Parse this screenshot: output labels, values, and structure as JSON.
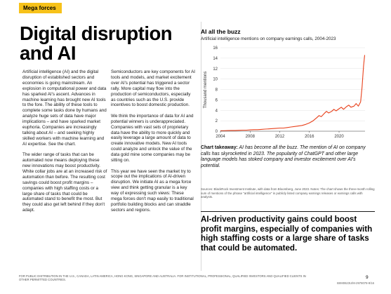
{
  "section_tag": "Mega forces",
  "headline": "Digital disruption and AI",
  "column1": [
    "Artificial intelligence (AI) and the digital disruption of established sectors and economies is going mainstream. An explosion in computational power and data has sparked AI's ascent. Advances in machine learning has brought new AI tools to the fore. The ability of these tools to complete some tasks done by humans and analyze huge sets of data have major implications – and have sparked market euphoria. Companies are increasingly talking about AI – and seeking highly skilled workers with machine learning and AI expertise. See the chart.",
    "The wider range of tasks that can be automated now means deploying these new innovations may boost productivity. White collar jobs are at an increased risk of automation than before. The resulting cost savings could boost profit margins – companies with high staffing costs or a large share of tasks that could be automated stand to benefit the most. But they could also get left behind if they don't adapt."
  ],
  "column2": [
    "Semiconductors are key components for AI tools and models, and market excitement over AI's potential has triggered a sector rally. More capital may flow into the production of semiconductors, especially as countries such as the U.S. provide incentives to boost domestic production.",
    "We think the importance of data for AI and potential winners is underappreciated. Companies with vast sets of proprietary data have the ability to more quickly and easily leverage a large amount of data to create innovative models. New AI tools could analyze and unlock the value of the data gold mine some companies may be sitting on.",
    "This year we have seen the market try to scope out the implications of AI-driven disruption. We initiate AI as a mega force view and think getting granular is a key way of expressing such views: These mega forces don't map easily to traditional portfolio building blocks and can straddle sectors and regions."
  ],
  "chart_title": "AI all the buzz",
  "chart_subtitle": "Artificial intelligence mentions on company earnings calls, 2004-2023",
  "chart_data": {
    "type": "line",
    "title": "AI all the buzz",
    "subtitle": "Artificial intelligence mentions on company earnings calls, 2004-2023",
    "xlabel": "",
    "ylabel": "Thousand mentions",
    "xlim": [
      2004,
      2023.5
    ],
    "ylim": [
      0,
      16
    ],
    "x_ticks": [
      "2004",
      "2008",
      "2012",
      "2016",
      "2020"
    ],
    "y_ticks": [
      "0",
      "2",
      "4",
      "6",
      "8",
      "10",
      "12",
      "14",
      "16"
    ],
    "grid": true,
    "color": "#e8411c",
    "points": [
      [
        2004.0,
        0.1
      ],
      [
        2004.5,
        0.1
      ],
      [
        2005.0,
        0.12
      ],
      [
        2005.5,
        0.15
      ],
      [
        2006.0,
        0.15
      ],
      [
        2006.5,
        0.18
      ],
      [
        2007.0,
        0.2
      ],
      [
        2007.5,
        0.2
      ],
      [
        2008.0,
        0.25
      ],
      [
        2008.5,
        0.3
      ],
      [
        2009.0,
        0.3
      ],
      [
        2009.5,
        0.35
      ],
      [
        2010.0,
        0.4
      ],
      [
        2010.5,
        0.45
      ],
      [
        2011.0,
        0.5
      ],
      [
        2011.5,
        0.55
      ],
      [
        2012.0,
        0.6
      ],
      [
        2012.5,
        0.6
      ],
      [
        2013.0,
        0.7
      ],
      [
        2013.5,
        0.8
      ],
      [
        2014.0,
        0.9
      ],
      [
        2014.5,
        1.0
      ],
      [
        2015.0,
        1.1
      ],
      [
        2015.5,
        1.3
      ],
      [
        2016.0,
        1.6
      ],
      [
        2016.5,
        2.0
      ],
      [
        2017.0,
        2.6
      ],
      [
        2017.3,
        3.0
      ],
      [
        2017.6,
        2.8
      ],
      [
        2018.0,
        3.4
      ],
      [
        2018.3,
        3.8
      ],
      [
        2018.6,
        3.5
      ],
      [
        2019.0,
        3.8
      ],
      [
        2019.3,
        4.2
      ],
      [
        2019.6,
        3.9
      ],
      [
        2020.0,
        4.3
      ],
      [
        2020.3,
        4.6
      ],
      [
        2020.6,
        4.2
      ],
      [
        2021.0,
        4.7
      ],
      [
        2021.3,
        5.0
      ],
      [
        2021.6,
        4.6
      ],
      [
        2022.0,
        4.8
      ],
      [
        2022.3,
        5.3
      ],
      [
        2022.6,
        4.8
      ],
      [
        2022.9,
        5.6
      ],
      [
        2023.1,
        8.5
      ],
      [
        2023.3,
        12.5
      ],
      [
        2023.45,
        14.6
      ]
    ]
  },
  "chart_takeaway_label": "Chart takeaway:",
  "chart_takeaway_text": " AI has become all the buzz. The mention of AI on company calls has skyrocketed in 2023. The popularity of ChatGPT and other large language models has stoked company and investor excitement over AI's potential.",
  "sources": "Sources: BlackRock Investment Institute, with data from Bloomberg, June 2023. Notes: The chart shows the three-month rolling sum of mentions of the phrase \"artificial intelligence\" in publicly listed company earnings releases or earnings calls with analysts.",
  "pull_quote": "AI-driven productivity gains could boost profit margins, especially of companies with high staffing costs or a large share of tasks that could be automated.",
  "footer": "FOR PUBLIC DISTRIBUTION IN THE U.S., CANADA, LATIN AMERICA, HONG KONG, SINGAPORE AND AUSTRALIA. FOR INSTITUTIONAL, PROFESSIONAL, QUALIFIED INVESTORS AND QUALIFIED CLIENTS IN OTHER PERMITTED COUNTRIES.",
  "page_number": "9",
  "doc_code": "BIIM0623U/M-2978078-9/16"
}
